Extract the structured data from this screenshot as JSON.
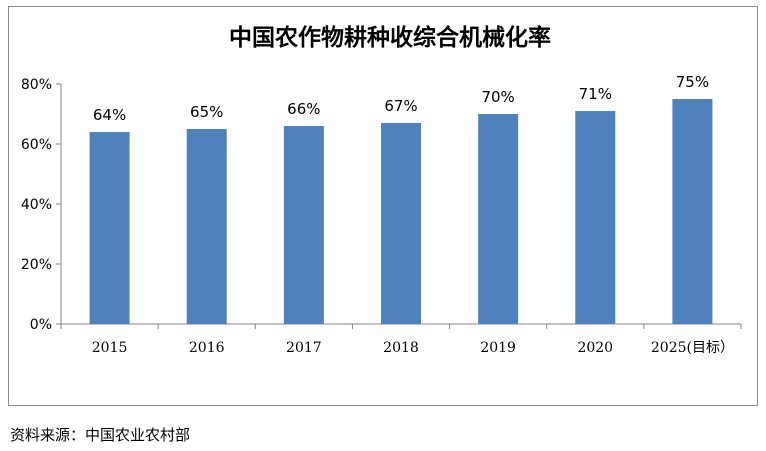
{
  "chart_data": {
    "type": "bar",
    "title": "中国农作物耕种收综合机械化率",
    "categories": [
      "2015",
      "2016",
      "2017",
      "2018",
      "2019",
      "2020",
      "2025(目标）"
    ],
    "values": [
      64,
      65,
      66,
      67,
      70,
      71,
      75
    ],
    "value_labels": [
      "64%",
      "65%",
      "66%",
      "67%",
      "70%",
      "71%",
      "75%"
    ],
    "y_ticks": [
      "0%",
      "20%",
      "40%",
      "60%",
      "80%"
    ],
    "y_tick_values": [
      0,
      20,
      40,
      60,
      80
    ],
    "ylim": [
      0,
      80
    ],
    "xlabel": "",
    "ylabel": "",
    "grid": false,
    "bar_color": "#4f81bd"
  },
  "source_note": "资料来源：中国农业农村部"
}
